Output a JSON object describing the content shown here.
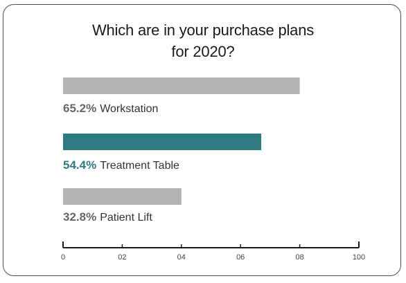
{
  "chart_data": {
    "type": "bar",
    "orientation": "horizontal",
    "title_lines": [
      "Which are in your purchase plans",
      "for 2020?"
    ],
    "categories": [
      "Workstation",
      "Treatment Table",
      "Patient Lift"
    ],
    "values": [
      65.2,
      54.4,
      32.8
    ],
    "value_labels": [
      "65.2%",
      "54.4%",
      "32.8%"
    ],
    "bar_lengths_on_axis": [
      80,
      67,
      40
    ],
    "highlight_index": 1,
    "colors": {
      "default": "#b3b3b3",
      "highlight": "#2e7a80",
      "default_text": "#666666",
      "highlight_text": "#2e7a80"
    },
    "x_ticks": [
      "0",
      "02",
      "04",
      "06",
      "08",
      "100"
    ],
    "xlim": [
      0,
      100
    ],
    "grid": false,
    "legend": "none"
  }
}
